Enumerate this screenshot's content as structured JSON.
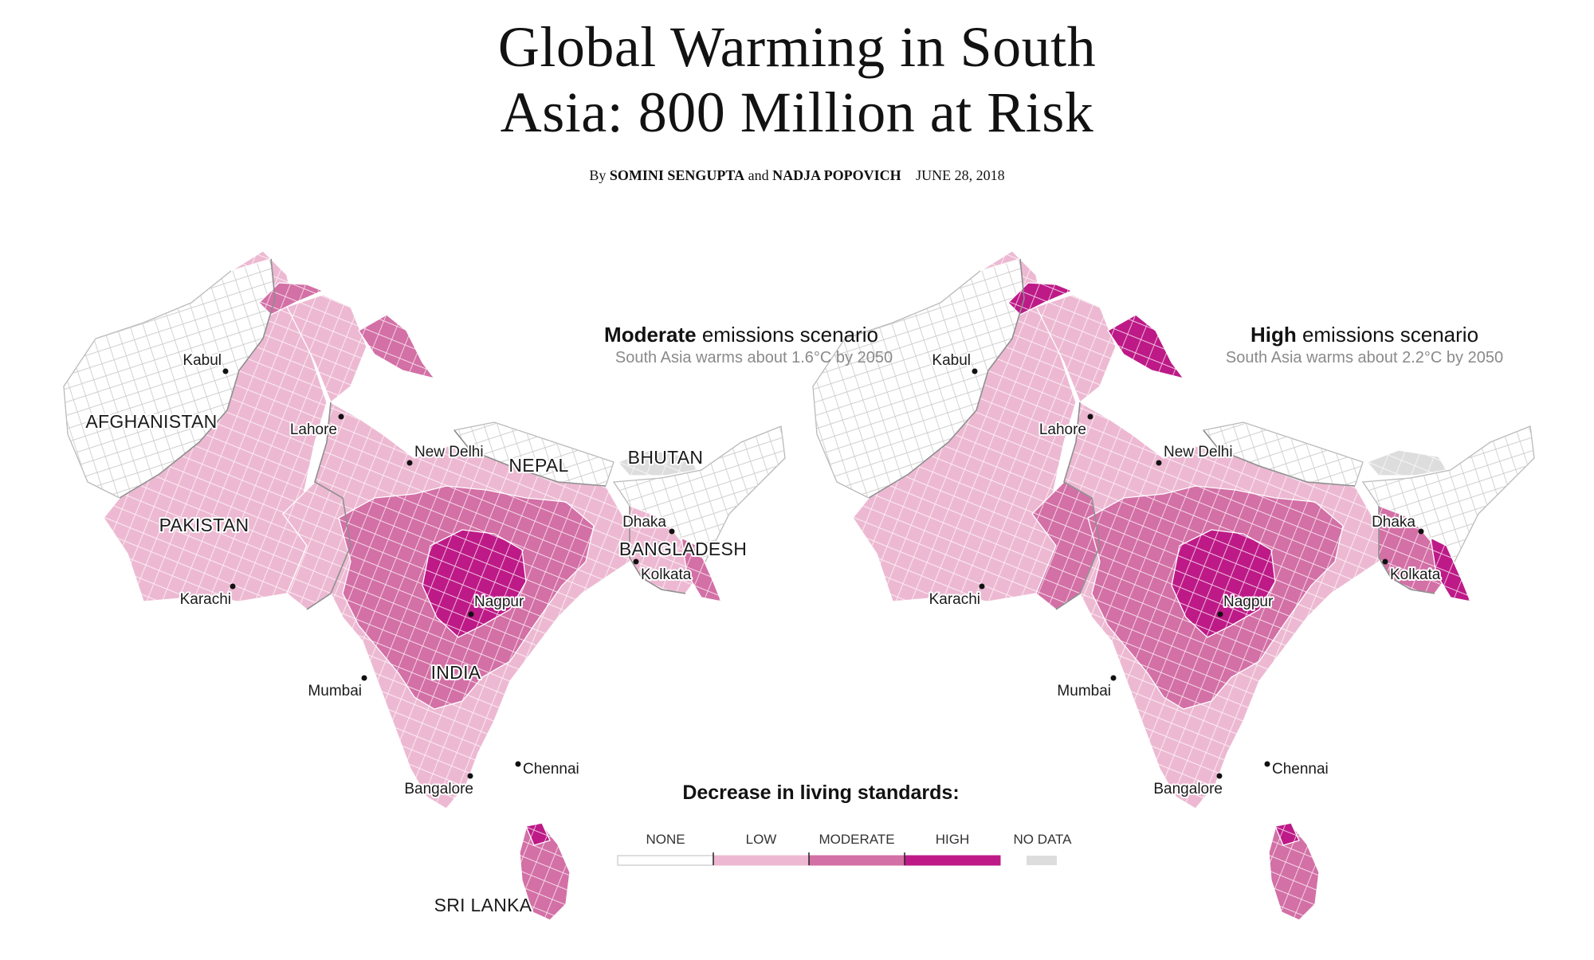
{
  "headline": {
    "line1": "Global Warming in South",
    "line2": "Asia: 800 Million at Risk"
  },
  "byline": {
    "prefix": "By",
    "author1": "SOMINI SENGUPTA",
    "joiner": "and",
    "author2": "NADJA POPOVICH",
    "date": "JUNE 28, 2018"
  },
  "maps": [
    {
      "scenario_bold": "Moderate",
      "scenario_rest": " emissions scenario",
      "subtitle": "South Asia warms about 1.6°C by 2050",
      "regions": {
        "afghanistan": "none",
        "pakistan": "low",
        "kashmir": "low",
        "ladakh": "moderate",
        "gilgit_north": "moderate",
        "india": "low",
        "central_india": "moderate",
        "nagpur_spot": "high",
        "west_sindh": "low",
        "nepal": "none",
        "bhutan": "no_data",
        "bangladesh": "low",
        "bangladesh_east": "moderate",
        "northeast_india": "none",
        "sri_lanka": "moderate",
        "sri_lanka_north": "high"
      },
      "labels": {
        "kabul": "Kabul",
        "lahore": "Lahore",
        "new_delhi": "New Delhi",
        "karachi": "Karachi",
        "mumbai": "Mumbai",
        "nagpur": "Nagpur",
        "bangalore": "Bangalore",
        "chennai": "Chennai",
        "dhaka": "Dhaka",
        "kolkata": "Kolkata",
        "afghanistan": "AFGHANISTAN",
        "pakistan": "PAKISTAN",
        "nepal": "NEPAL",
        "bhutan": "BHUTAN",
        "bangladesh": "BANGLADESH",
        "india": "INDIA",
        "sri_lanka": "SRI LANKA"
      }
    },
    {
      "scenario_bold": "High",
      "scenario_rest": " emissions scenario",
      "subtitle": "South Asia warms about 2.2°C by 2050",
      "regions": {
        "afghanistan": "none",
        "pakistan": "low",
        "kashmir": "low",
        "ladakh": "high",
        "gilgit_north": "high",
        "india": "low",
        "central_india": "moderate",
        "nagpur_spot": "high",
        "west_sindh": "moderate",
        "nepal": "none",
        "bhutan": "no_data",
        "bangladesh": "moderate",
        "bangladesh_east": "high",
        "northeast_india": "none",
        "sri_lanka": "moderate",
        "sri_lanka_north": "high"
      },
      "labels": {
        "kabul": "Kabul",
        "lahore": "Lahore",
        "new_delhi": "New Delhi",
        "karachi": "Karachi",
        "mumbai": "Mumbai",
        "nagpur": "Nagpur",
        "bangalore": "Bangalore",
        "chennai": "Chennai",
        "dhaka": "Dhaka",
        "kolkata": "Kolkata"
      }
    }
  ],
  "legend": {
    "title": "Decrease in living standards:",
    "categories": [
      {
        "key": "none",
        "label": "NONE",
        "color": "#ffffff"
      },
      {
        "key": "low",
        "label": "LOW",
        "color": "#edb9d2"
      },
      {
        "key": "moderate",
        "label": "MODERATE",
        "color": "#d370a6"
      },
      {
        "key": "high",
        "label": "HIGH",
        "color": "#bd1a87"
      }
    ],
    "no_data": {
      "label": "NO DATA",
      "color": "#dddddd"
    }
  }
}
